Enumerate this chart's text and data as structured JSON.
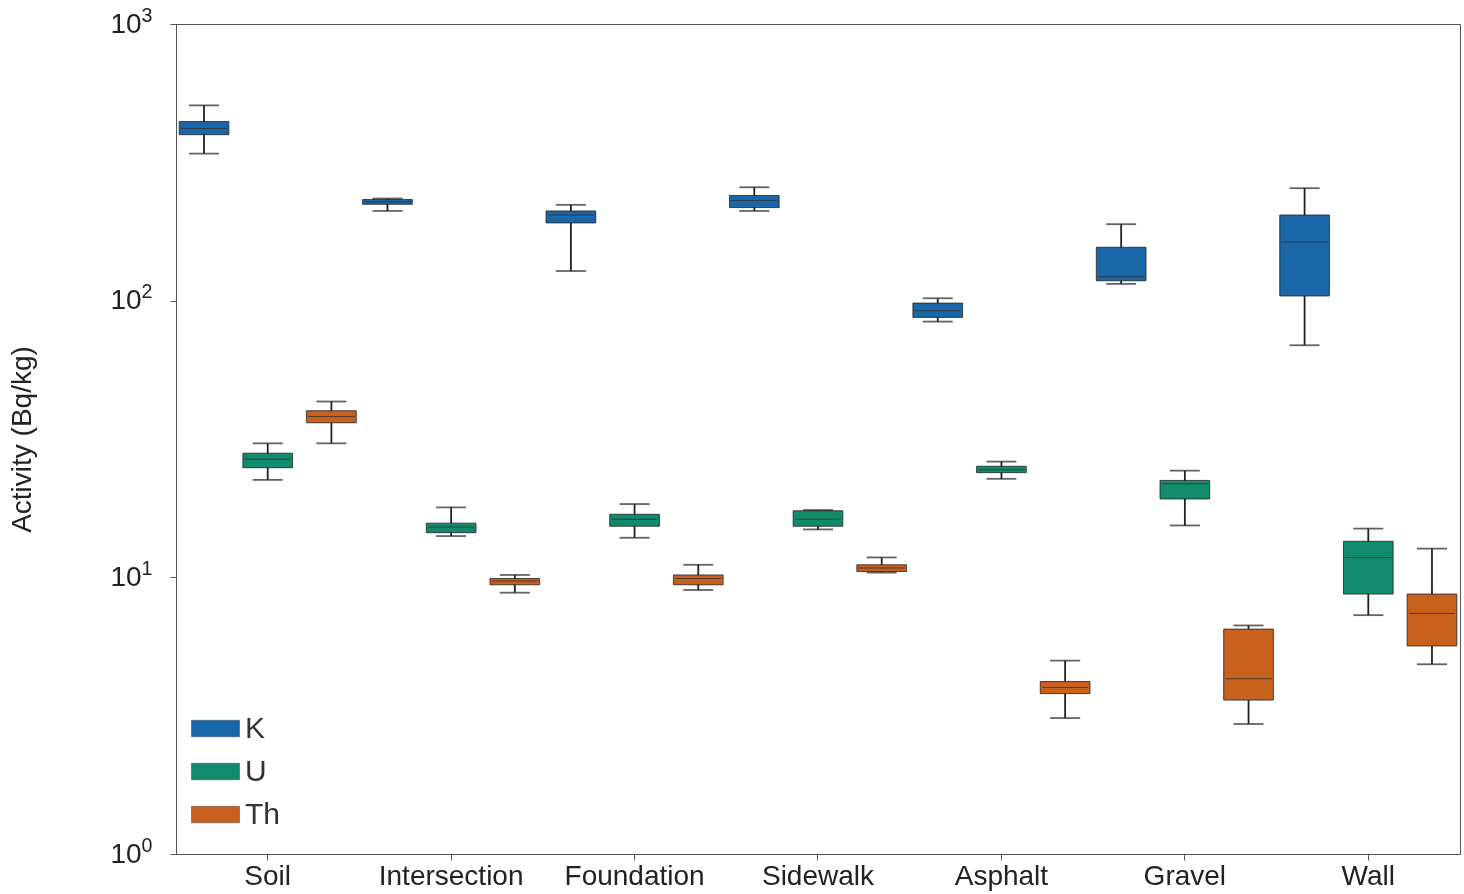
{
  "chart_data": {
    "type": "box",
    "ylabel": "Activity (Bq/kg)",
    "log": true,
    "ylim": [
      1,
      1000
    ],
    "yticks": [
      {
        "value": 1,
        "label": "10$^{0}$"
      },
      {
        "value": 10,
        "label": "10$^{1}$"
      },
      {
        "value": 100,
        "label": "10$^{2}$"
      },
      {
        "value": 1000,
        "label": "10$^{3}$"
      }
    ],
    "grid": false,
    "legend": "bottom left",
    "categories": [
      "Soil",
      "Intersection",
      "Foundation",
      "Sidewalk",
      "Asphalt",
      "Gravel",
      "Wall"
    ],
    "series": [
      {
        "name": "K",
        "color": "#1967a8",
        "boxes": [
          {
            "low": 340,
            "q1": 398,
            "median": 419,
            "q3": 444,
            "high": 508
          },
          {
            "low": 211,
            "q1": 223,
            "median": 228,
            "q3": 232,
            "high": 234
          },
          {
            "low": 128,
            "q1": 191,
            "median": 204,
            "q3": 211,
            "high": 222
          },
          {
            "low": 211,
            "q1": 217,
            "median": 230,
            "q3": 240,
            "high": 257
          },
          {
            "low": 84,
            "q1": 87,
            "median": 92,
            "q3": 98,
            "high": 102
          },
          {
            "low": 115,
            "q1": 118,
            "median": 122,
            "q3": 156,
            "high": 189
          },
          {
            "low": 69,
            "q1": 104,
            "median": 163,
            "q3": 204,
            "high": 255
          }
        ]
      },
      {
        "name": "U",
        "color": "#128a6c",
        "boxes": [
          {
            "low": 22.5,
            "q1": 24.9,
            "median": 26.7,
            "q3": 28.1,
            "high": 30.5
          },
          {
            "low": 14.1,
            "q1": 14.5,
            "median": 15.2,
            "q3": 15.7,
            "high": 17.9
          },
          {
            "low": 13.9,
            "q1": 15.3,
            "median": 16.2,
            "q3": 16.9,
            "high": 18.4
          },
          {
            "low": 14.9,
            "q1": 15.3,
            "median": 16.2,
            "q3": 17.4,
            "high": 17.5
          },
          {
            "low": 22.7,
            "q1": 23.9,
            "median": 24.5,
            "q3": 25.2,
            "high": 26.2
          },
          {
            "low": 15.4,
            "q1": 19.2,
            "median": 21.8,
            "q3": 22.4,
            "high": 24.3
          },
          {
            "low": 7.3,
            "q1": 8.7,
            "median": 11.8,
            "q3": 13.5,
            "high": 15.0
          }
        ]
      },
      {
        "name": "Th",
        "color": "#c8601e",
        "boxes": [
          {
            "low": 30.5,
            "q1": 36.2,
            "median": 38.1,
            "q3": 40.0,
            "high": 43.2
          },
          {
            "low": 8.8,
            "q1": 9.4,
            "median": 9.7,
            "q3": 9.9,
            "high": 10.2
          },
          {
            "low": 9.0,
            "q1": 9.4,
            "median": 9.9,
            "q3": 10.2,
            "high": 11.1
          },
          {
            "low": 10.4,
            "q1": 10.5,
            "median": 10.8,
            "q3": 11.1,
            "high": 11.8
          },
          {
            "low": 3.1,
            "q1": 3.8,
            "median": 4.0,
            "q3": 4.2,
            "high": 5.0
          },
          {
            "low": 2.95,
            "q1": 3.6,
            "median": 4.3,
            "q3": 6.5,
            "high": 6.7
          },
          {
            "low": 4.85,
            "q1": 5.65,
            "median": 7.4,
            "q3": 8.7,
            "high": 12.7
          }
        ]
      }
    ]
  }
}
